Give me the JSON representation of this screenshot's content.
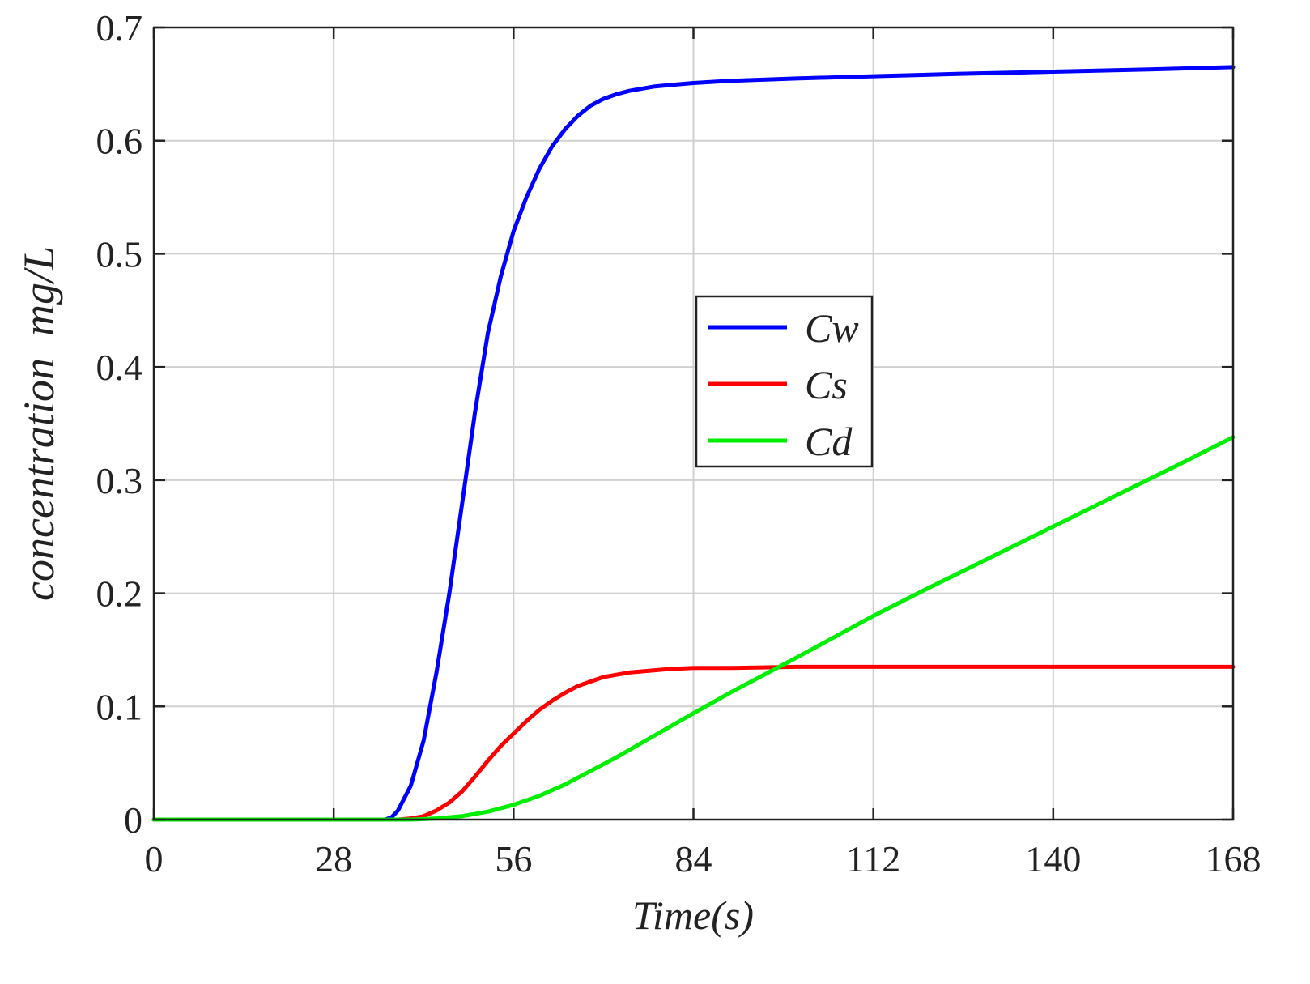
{
  "chart_data": {
    "type": "line",
    "title": "",
    "xlabel": "Time(s)",
    "ylabel": "concentration  mg/L",
    "xlim": [
      0,
      168
    ],
    "ylim": [
      0,
      0.7
    ],
    "x_ticks": [
      0,
      28,
      56,
      84,
      112,
      140,
      168
    ],
    "y_ticks": [
      0,
      0.1,
      0.2,
      0.3,
      0.4,
      0.5,
      0.6,
      0.7
    ],
    "x_tick_labels": [
      "0",
      "28",
      "56",
      "84",
      "112",
      "140",
      "168"
    ],
    "y_tick_labels": [
      "0",
      "0.1",
      "0.2",
      "0.3",
      "0.4",
      "0.5",
      "0.6",
      "0.7"
    ],
    "grid": true,
    "legend_position": "center",
    "series": [
      {
        "name": "Cw",
        "color": "#0000ff",
        "x": [
          0,
          36,
          37,
          38,
          40,
          42,
          44,
          46,
          48,
          50,
          52,
          54,
          56,
          58,
          60,
          62,
          64,
          66,
          68,
          70,
          72,
          74,
          76,
          78,
          80,
          84,
          90,
          100,
          112,
          125,
          140,
          155,
          168
        ],
        "y": [
          0,
          0,
          0.002,
          0.008,
          0.03,
          0.07,
          0.13,
          0.2,
          0.28,
          0.36,
          0.43,
          0.48,
          0.52,
          0.55,
          0.575,
          0.595,
          0.61,
          0.622,
          0.631,
          0.637,
          0.641,
          0.644,
          0.646,
          0.648,
          0.649,
          0.651,
          0.653,
          0.655,
          0.657,
          0.659,
          0.661,
          0.663,
          0.665
        ]
      },
      {
        "name": "Cs",
        "color": "#ff0000",
        "x": [
          0,
          38,
          40,
          42,
          44,
          46,
          48,
          50,
          52,
          54,
          56,
          58,
          60,
          62,
          64,
          66,
          68,
          70,
          72,
          74,
          76,
          78,
          80,
          84,
          90,
          100,
          112,
          140,
          168
        ],
        "y": [
          0,
          0,
          0.001,
          0.003,
          0.008,
          0.015,
          0.025,
          0.038,
          0.052,
          0.065,
          0.076,
          0.087,
          0.097,
          0.105,
          0.112,
          0.118,
          0.122,
          0.126,
          0.128,
          0.13,
          0.131,
          0.132,
          0.133,
          0.134,
          0.134,
          0.135,
          0.135,
          0.135,
          0.135
        ]
      },
      {
        "name": "Cd",
        "color": "#00ee00",
        "x": [
          0,
          40,
          44,
          48,
          52,
          56,
          60,
          64,
          68,
          72,
          76,
          80,
          84,
          90,
          96,
          100,
          112,
          120,
          130,
          140,
          150,
          160,
          168
        ],
        "y": [
          0,
          0,
          0.001,
          0.003,
          0.007,
          0.013,
          0.021,
          0.031,
          0.043,
          0.055,
          0.068,
          0.081,
          0.094,
          0.113,
          0.131,
          0.143,
          0.18,
          0.203,
          0.231,
          0.259,
          0.287,
          0.315,
          0.338
        ]
      }
    ]
  }
}
